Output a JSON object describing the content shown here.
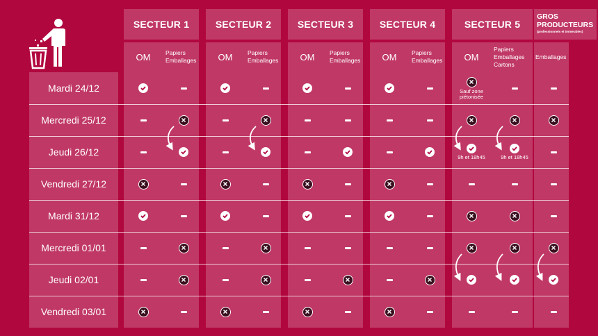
{
  "sectors": [
    {
      "id": "s1",
      "title": "SECTEUR 1",
      "columns": [
        "OM",
        "Papiers\nEmballages"
      ]
    },
    {
      "id": "s2",
      "title": "SECTEUR 2",
      "columns": [
        "OM",
        "Papiers\nEmballages"
      ]
    },
    {
      "id": "s3",
      "title": "SECTEUR 3",
      "columns": [
        "OM",
        "Papiers\nEmballages"
      ]
    },
    {
      "id": "s4",
      "title": "SECTEUR 4",
      "columns": [
        "OM",
        "Papiers\nEmballages"
      ]
    },
    {
      "id": "s5",
      "title": "SECTEUR 5",
      "columns": [
        "OM",
        "Papiers\nEmballages\nCartons"
      ]
    }
  ],
  "gros_producteurs": {
    "title_line1": "GROS",
    "title_line2": "PRODUCTEURS",
    "subtitle": "(professionnels et immeubles)",
    "column": "Emballages"
  },
  "days": [
    "Mardi 24/12",
    "Mercredi 25/12",
    "Jeudi 26/12",
    "Vendredi 27/12",
    "Mardi 31/12",
    "Mercredi 01/01",
    "Jeudi 02/01",
    "Vendredi 03/01"
  ],
  "grid": [
    [
      "ok",
      "-",
      "ok",
      "-",
      "ok",
      "-",
      "ok",
      "-",
      "no",
      "-",
      "-"
    ],
    [
      "-",
      "no",
      "-",
      "no",
      "-",
      "-",
      "-",
      "-",
      "no",
      "no",
      "no"
    ],
    [
      "-",
      "ok",
      "-",
      "ok",
      "-",
      "ok",
      "-",
      "ok",
      "ok",
      "ok",
      "-"
    ],
    [
      "no",
      "-",
      "no",
      "-",
      "no",
      "-",
      "no",
      "-",
      "-",
      "-",
      "-"
    ],
    [
      "ok",
      "-",
      "ok",
      "-",
      "ok",
      "-",
      "ok",
      "-",
      "no",
      "no",
      "-"
    ],
    [
      "-",
      "no",
      "-",
      "no",
      "-",
      "-",
      "-",
      "-",
      "no",
      "no",
      "no"
    ],
    [
      "-",
      "no",
      "-",
      "no",
      "-",
      "no",
      "-",
      "no",
      "ok",
      "ok",
      "ok"
    ],
    [
      "no",
      "-",
      "no",
      "-",
      "no",
      "-",
      "no",
      "-",
      "-",
      "-",
      "-"
    ]
  ],
  "notes": {
    "r0c8": "Sauf zone\npiétonisée",
    "r2c8": "9h et 18h45",
    "r2c9": "9h et 18h45"
  },
  "icons": {
    "collected": "check-circle-icon",
    "not_collected": "x-circle-icon",
    "no_service": "dash-icon",
    "logo": "trash-bin-icon"
  }
}
